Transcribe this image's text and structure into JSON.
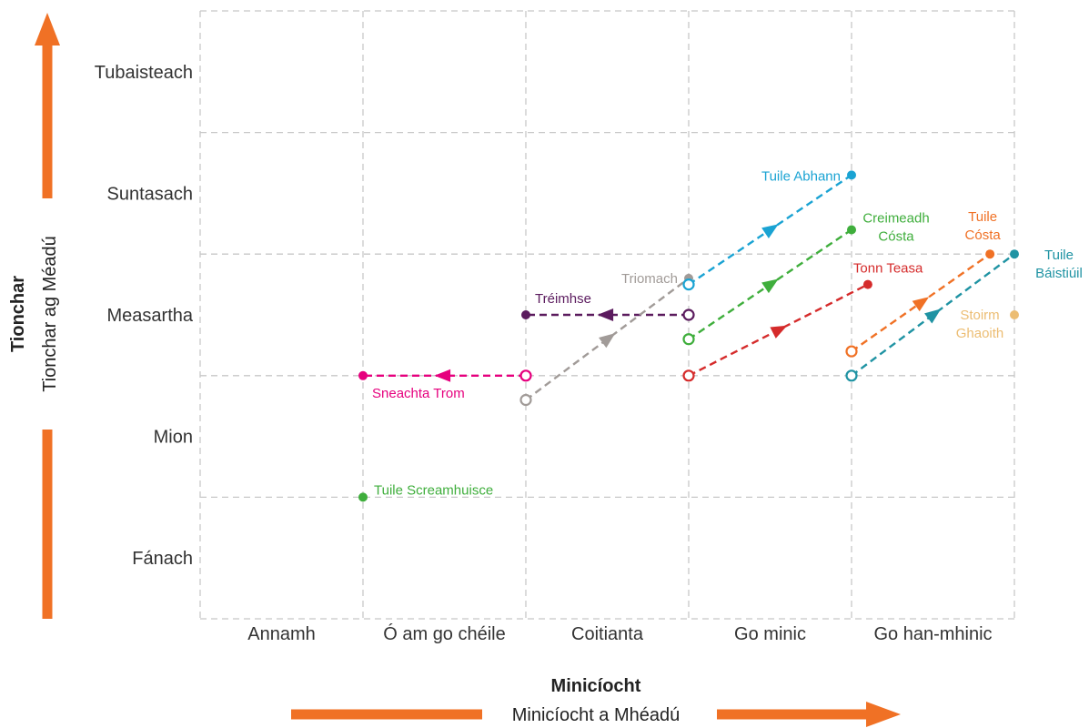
{
  "chart_data": {
    "type": "scatter",
    "title": "",
    "xlabel": "Minicíocht",
    "xlabel_sub": "Minicíocht a Mhéadú",
    "ylabel": "Tionchar",
    "ylabel_sub": "Tionchar ag Méadú",
    "x_categories": [
      "Annamh",
      "Ó am go chéile",
      "Coitianta",
      "Go minic",
      "Go han-mhinic"
    ],
    "y_categories": [
      "Fánach",
      "Mion",
      "Measartha",
      "Suntasach",
      "Tubaisteach"
    ],
    "xlim": [
      0,
      5
    ],
    "ylim": [
      0,
      5
    ],
    "grid": true,
    "arrow_color": "#f07125",
    "series": [
      {
        "name": "Tuile Screamhuisce",
        "color": "#3fae3c",
        "from": null,
        "to": [
          1.0,
          1.0
        ]
      },
      {
        "name": "Sneachta Trom",
        "color": "#e6007e",
        "from": [
          2.0,
          2.0
        ],
        "to": [
          1.0,
          2.0
        ]
      },
      {
        "name": "Tréimhse",
        "color": "#5b1b5e",
        "from": [
          3.0,
          2.5
        ],
        "to": [
          2.0,
          2.5
        ]
      },
      {
        "name": "Triomach",
        "color": "#a19b98",
        "from": [
          2.0,
          1.8
        ],
        "to": [
          3.0,
          2.8
        ]
      },
      {
        "name": "Tuile Abhann",
        "color": "#1aa3d3",
        "from": [
          3.0,
          2.75
        ],
        "to": [
          4.0,
          3.65
        ]
      },
      {
        "name": "Creimeadh Cósta",
        "color": "#3fae3c",
        "from": [
          3.0,
          2.3
        ],
        "to": [
          4.0,
          3.2
        ]
      },
      {
        "name": "Tonn Teasa",
        "color": "#d52b2b",
        "from": [
          3.0,
          2.0
        ],
        "to": [
          4.1,
          2.75
        ]
      },
      {
        "name": "Tuile Cósta",
        "color": "#f07125",
        "from": [
          4.0,
          2.2
        ],
        "to": [
          4.85,
          3.0
        ]
      },
      {
        "name": "Tuile Báistiúil",
        "color": "#1f93a3",
        "from": [
          4.0,
          2.0
        ],
        "to": [
          5.0,
          3.0
        ]
      },
      {
        "name": "Stoirm Ghaoith",
        "color": "#ecbd73",
        "from": null,
        "to": [
          5.0,
          2.5
        ]
      }
    ]
  }
}
